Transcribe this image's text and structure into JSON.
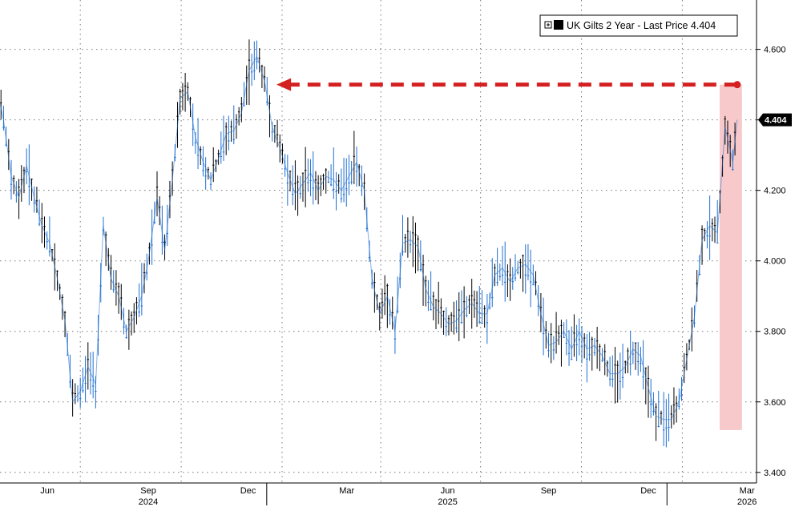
{
  "chart_data": {
    "type": "line",
    "legend": {
      "label": "UK Gilts 2 Year - Last Price 4.404",
      "placement": "top-right"
    },
    "last_price_label": "4.404",
    "ylim": [
      3.37,
      4.74
    ],
    "y_ticks": [
      "3.400",
      "3.600",
      "3.800",
      "4.000",
      "4.200",
      "4.400",
      "4.600"
    ],
    "y_tick_values": [
      3.4,
      3.6,
      3.8,
      4.0,
      4.2,
      4.4,
      4.6
    ],
    "x_month_labels": [
      "Jun",
      "Sep",
      "Dec",
      "Mar",
      "Jun",
      "Sep",
      "Dec",
      "Mar"
    ],
    "x_year_labels": [
      "2024",
      "2025",
      "2026"
    ],
    "grid": true,
    "highlight_period": {
      "from": "2026-02-18",
      "to": "2026-03-06"
    },
    "annotation_arrow": {
      "from_date": "2026-03-06",
      "to_date": "2025-01-10",
      "level": 4.5
    },
    "series": [
      {
        "x": [
          "2024-04-15",
          "2024-04-22",
          "2024-04-29",
          "2024-05-06",
          "2024-05-13",
          "2024-05-20",
          "2024-05-27",
          "2024-06-03",
          "2024-06-10",
          "2024-06-17",
          "2024-06-24",
          "2024-07-01",
          "2024-07-08",
          "2024-07-15",
          "2024-07-22",
          "2024-07-29",
          "2024-08-05",
          "2024-08-12",
          "2024-08-19",
          "2024-08-26",
          "2024-09-02",
          "2024-09-09",
          "2024-09-16",
          "2024-09-23",
          "2024-09-30",
          "2024-10-07",
          "2024-10-14",
          "2024-10-21",
          "2024-10-28",
          "2024-11-04",
          "2024-11-11",
          "2024-11-18",
          "2024-11-25",
          "2024-12-02",
          "2024-12-09",
          "2024-12-16",
          "2024-12-23",
          "2024-12-30",
          "2025-01-06",
          "2025-01-13",
          "2025-01-20",
          "2025-01-27",
          "2025-02-03",
          "2025-02-10",
          "2025-02-17",
          "2025-02-24",
          "2025-03-03",
          "2025-03-10",
          "2025-03-17",
          "2025-03-24",
          "2025-03-31",
          "2025-04-07",
          "2025-04-14",
          "2025-04-21",
          "2025-04-28",
          "2025-05-05",
          "2025-05-12",
          "2025-05-19",
          "2025-05-26",
          "2025-06-02",
          "2025-06-09",
          "2025-06-16",
          "2025-06-23",
          "2025-06-30",
          "2025-07-07",
          "2025-07-14",
          "2025-07-21",
          "2025-07-28",
          "2025-08-04",
          "2025-08-11",
          "2025-08-18",
          "2025-08-25",
          "2025-09-01",
          "2025-09-08",
          "2025-09-15",
          "2025-09-22",
          "2025-09-29",
          "2025-10-06",
          "2025-10-13",
          "2025-10-20",
          "2025-10-27",
          "2025-11-03",
          "2025-11-10",
          "2025-11-17",
          "2025-11-24",
          "2025-12-01",
          "2025-12-08",
          "2025-12-15",
          "2025-12-22",
          "2025-12-29",
          "2026-01-05",
          "2026-01-12",
          "2026-01-19",
          "2026-01-26",
          "2026-02-02",
          "2026-02-09",
          "2026-02-16",
          "2026-02-23",
          "2026-03-02",
          "2026-03-06"
        ],
        "values": [
          4.33,
          4.28,
          4.5,
          4.4,
          4.24,
          4.18,
          4.27,
          4.18,
          4.1,
          4.05,
          3.95,
          3.83,
          3.6,
          3.63,
          3.7,
          3.65,
          4.1,
          3.95,
          3.9,
          3.8,
          3.84,
          3.9,
          4.02,
          4.18,
          4.03,
          4.23,
          4.46,
          4.48,
          4.35,
          4.28,
          4.23,
          4.29,
          4.36,
          4.37,
          4.42,
          4.54,
          4.58,
          4.51,
          4.38,
          4.32,
          4.25,
          4.19,
          4.22,
          4.25,
          4.2,
          4.24,
          4.23,
          4.2,
          4.24,
          4.28,
          4.2,
          3.95,
          3.85,
          3.9,
          3.8,
          4.05,
          4.06,
          4.04,
          3.92,
          3.87,
          3.85,
          3.82,
          3.83,
          3.86,
          3.88,
          3.85,
          3.85,
          3.96,
          3.98,
          3.94,
          3.98,
          3.99,
          3.96,
          3.85,
          3.76,
          3.77,
          3.8,
          3.75,
          3.8,
          3.75,
          3.76,
          3.73,
          3.68,
          3.68,
          3.7,
          3.75,
          3.73,
          3.64,
          3.56,
          3.55,
          3.55,
          3.6,
          3.72,
          3.84,
          4.06,
          4.1,
          4.08,
          4.38,
          4.28,
          4.4
        ]
      }
    ]
  }
}
